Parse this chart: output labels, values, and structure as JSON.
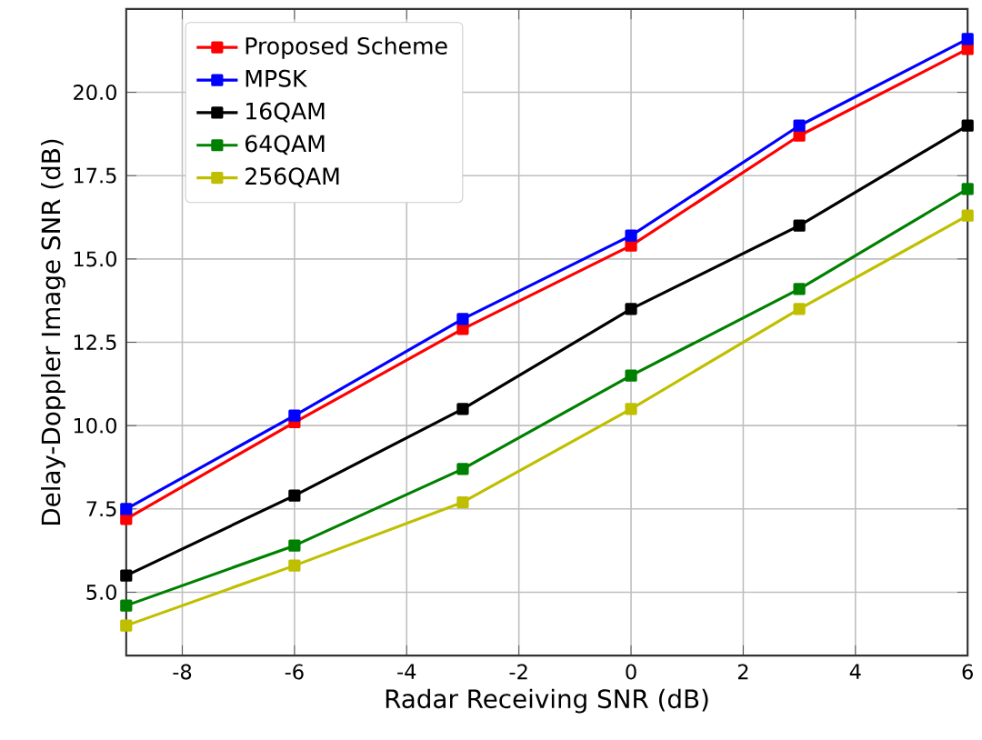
{
  "chart_data": {
    "type": "line",
    "xlabel": "Radar Receiving SNR (dB)",
    "ylabel": "Delay-Doppler Image SNR (dB)",
    "x": [
      -9,
      -6,
      -3,
      0,
      3,
      6
    ],
    "series": [
      {
        "name": "Proposed Scheme",
        "color": "#ff0000",
        "values": [
          7.2,
          10.1,
          12.9,
          15.4,
          18.7,
          21.3
        ]
      },
      {
        "name": "MPSK",
        "color": "#0000ff",
        "values": [
          7.5,
          10.3,
          13.2,
          15.7,
          19.0,
          21.6
        ]
      },
      {
        "name": "16QAM",
        "color": "#000000",
        "values": [
          5.5,
          7.9,
          10.5,
          13.5,
          16.0,
          19.0
        ]
      },
      {
        "name": "64QAM",
        "color": "#008000",
        "values": [
          4.6,
          6.4,
          8.7,
          11.5,
          14.1,
          17.1
        ]
      },
      {
        "name": "256QAM",
        "color": "#bfbf00",
        "values": [
          4.0,
          5.8,
          7.7,
          10.5,
          13.5,
          16.3
        ]
      }
    ],
    "xlim": [
      -9,
      6
    ],
    "ylim": [
      3.1,
      22.5
    ],
    "xticks": [
      -8,
      -6,
      -4,
      -2,
      0,
      2,
      4,
      6
    ],
    "yticks": [
      {
        "value": 5,
        "label": "5.0"
      },
      {
        "value": 7.5,
        "label": "7.5"
      },
      {
        "value": 10,
        "label": "10.0"
      },
      {
        "value": 12.5,
        "label": "12.5"
      },
      {
        "value": 15,
        "label": "15.0"
      },
      {
        "value": 17.5,
        "label": "17.5"
      },
      {
        "value": 20,
        "label": "20.0"
      }
    ],
    "grid": true,
    "legend": "top left",
    "marker": "square",
    "line_style": "solid"
  }
}
